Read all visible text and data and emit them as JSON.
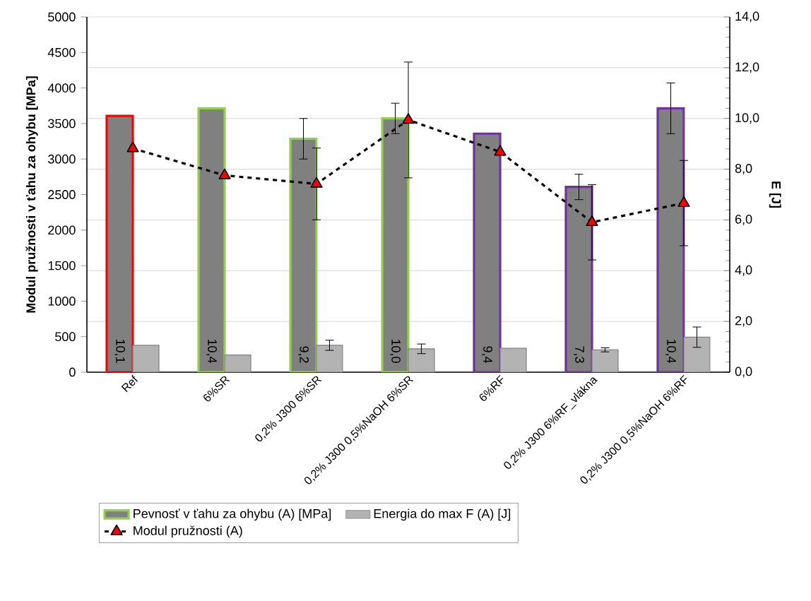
{
  "chart_data": {
    "type": "bar",
    "categories": [
      "Ref",
      "6%SR",
      "0,2% J300 6%SR",
      "0,2% J300 0,5%NaOH 6%SR",
      "6%RF",
      "0,2% J300 6%RF_vlákna",
      "0,2% J300 0,5%NaOH 6%RF"
    ],
    "ylabel": "Modul pružnosti v ťahu za ohybu [MPa]",
    "y2label": "E [J]",
    "ylim": [
      0,
      5000
    ],
    "yticks": [
      0,
      500,
      1000,
      1500,
      2000,
      2500,
      3000,
      3500,
      4000,
      4500,
      5000
    ],
    "y2lim": [
      0,
      14
    ],
    "y2ticks": [
      {
        "value": 0,
        "label": "0,0"
      },
      {
        "value": 2,
        "label": "2,0"
      },
      {
        "value": 4,
        "label": "4,0"
      },
      {
        "value": 6,
        "label": "6,0"
      },
      {
        "value": 8,
        "label": "8,0"
      },
      {
        "value": 10,
        "label": "10,0"
      },
      {
        "value": 12,
        "label": "12,0"
      },
      {
        "value": 14,
        "label": "14,0"
      }
    ],
    "grid": "y",
    "legend": "bottom",
    "series": [
      {
        "name": "Pevnosť v ťahu za ohybu (A) [MPa]",
        "axis": "y2",
        "color": "#808080",
        "colors": [
          "#ff0000",
          "#92d050",
          "#92d050",
          "#92d050",
          "#7030a0",
          "#7030a0",
          "#7030a0"
        ],
        "values": [
          10.1,
          10.4,
          9.2,
          10.0,
          9.4,
          7.3,
          10.4
        ],
        "value_labels": [
          "10,1",
          "10,4",
          "9,2",
          "10,0",
          "9,4",
          "7,3",
          "10,4"
        ],
        "errors": [
          null,
          null,
          0.8,
          0.6,
          null,
          0.5,
          1.0
        ]
      },
      {
        "name": "Energia do max F (A) [J]",
        "axis": "y2",
        "color": "#b3b3b3",
        "values": [
          1.06,
          0.68,
          1.06,
          0.92,
          0.94,
          0.88,
          1.38
        ],
        "errors": [
          null,
          null,
          0.2,
          0.19,
          null,
          0.08,
          0.4
        ]
      },
      {
        "name": "Modul pružnosti (A)",
        "type": "line",
        "axis": "y",
        "color": "#ff0000",
        "line_style": "dashed",
        "marker": "triangle",
        "values": [
          3150,
          2770,
          2650,
          3550,
          3100,
          2110,
          2380
        ],
        "errors": [
          null,
          null,
          505,
          815,
          null,
          530,
          600
        ]
      }
    ]
  }
}
